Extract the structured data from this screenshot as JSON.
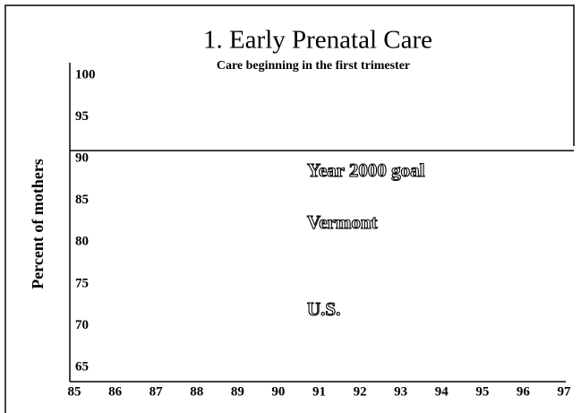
{
  "chart_data": {
    "type": "line",
    "title": "1. Early Prenatal Care",
    "subtitle": "Care beginning in the first trimester",
    "ylabel": "Percent of mothers",
    "xlim": [
      85,
      97
    ],
    "xticks": [
      85,
      86,
      87,
      88,
      89,
      90,
      91,
      92,
      93,
      94,
      95,
      96,
      97
    ],
    "ylim": [
      65,
      100
    ],
    "yticks": [
      65,
      70,
      75,
      80,
      85,
      90,
      95,
      100
    ],
    "reference_line": {
      "label": "Year 2000 goal",
      "value": 90
    },
    "annotations": [
      "Vermont",
      "U.S."
    ],
    "series": []
  }
}
